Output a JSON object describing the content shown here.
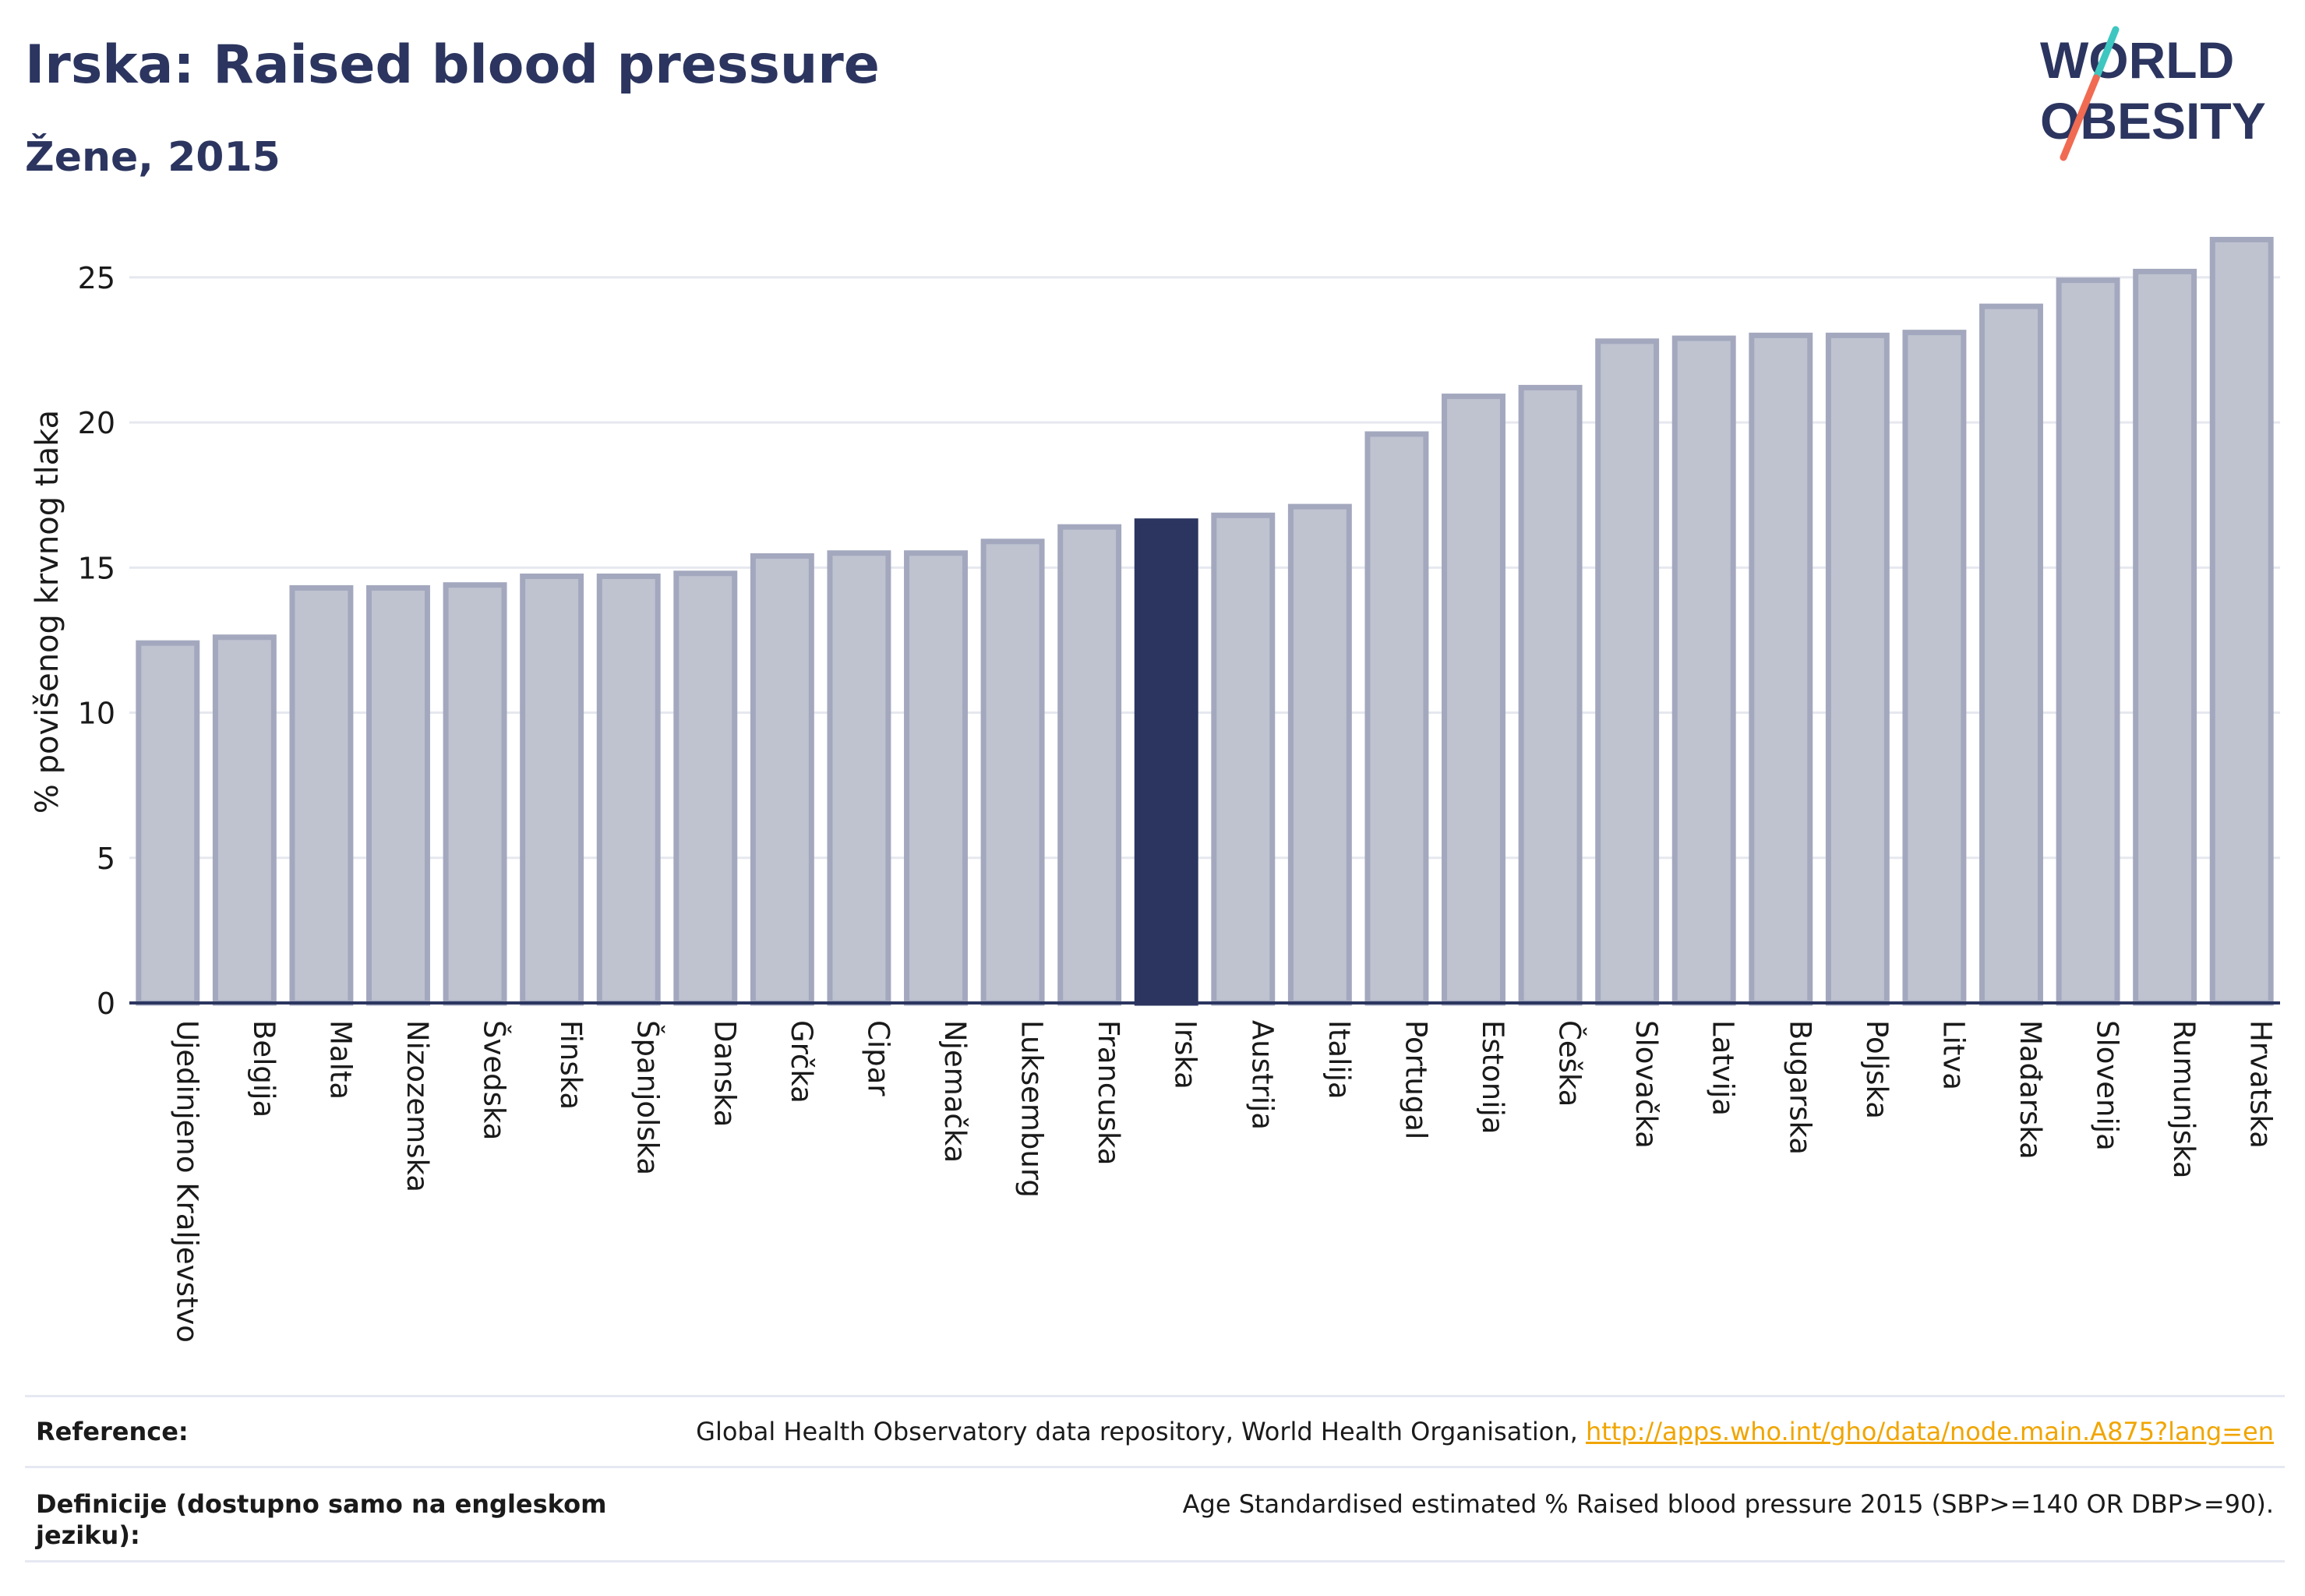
{
  "header": {
    "title": "Irska: Raised blood pressure",
    "subtitle": "Žene, 2015"
  },
  "logo": {
    "line1": "WORLD",
    "line2": "OBESITY",
    "colors": {
      "text": "#2b355f",
      "slash_top": "#3ec7c0",
      "slash_bottom": "#f06b52"
    }
  },
  "colors": {
    "bar_fill": "#bfc3d0",
    "bar_stroke": "#a3a8be",
    "highlight": "#2b355f",
    "grid": "#e6e8ef",
    "axis": "#2b355f"
  },
  "chart_data": {
    "type": "bar",
    "ylabel": "% povišenog krvnog tlaka",
    "ylim": [
      0,
      26.5
    ],
    "yticks": [
      0,
      5,
      10,
      15,
      20,
      25
    ],
    "grid": true,
    "highlight": "Irska",
    "categories": [
      "Ujedinjeno Kraljevstvo",
      "Belgija",
      "Malta",
      "Nizozemska",
      "Švedska",
      "Finska",
      "Španjolska",
      "Danska",
      "Grčka",
      "Cipar",
      "Njemačka",
      "Luksemburg",
      "Francuska",
      "Irska",
      "Austrija",
      "Italija",
      "Portugal",
      "Estonija",
      "Češka",
      "Slovačka",
      "Latvija",
      "Bugarska",
      "Poljska",
      "Litva",
      "Mađarska",
      "Slovenija",
      "Rumunjska",
      "Hrvatska"
    ],
    "values": [
      12.4,
      12.6,
      14.3,
      14.3,
      14.4,
      14.7,
      14.7,
      14.8,
      15.4,
      15.5,
      15.5,
      15.9,
      16.4,
      16.6,
      16.8,
      17.1,
      19.6,
      20.9,
      21.2,
      22.8,
      22.9,
      23.0,
      23.0,
      23.1,
      24.0,
      24.9,
      25.2,
      26.3
    ]
  },
  "reference": {
    "ref_label": "Reference:",
    "ref_text": "Global Health Observatory data repository, World Health Organisation, ",
    "ref_link": "http://apps.who.int/gho/data/node.main.A875?lang=en",
    "def_label": "Definicije (dostupno samo na engleskom jeziku):",
    "def_text": "Age Standardised estimated % Raised blood pressure 2015 (SBP>=140 OR DBP>=90)."
  }
}
